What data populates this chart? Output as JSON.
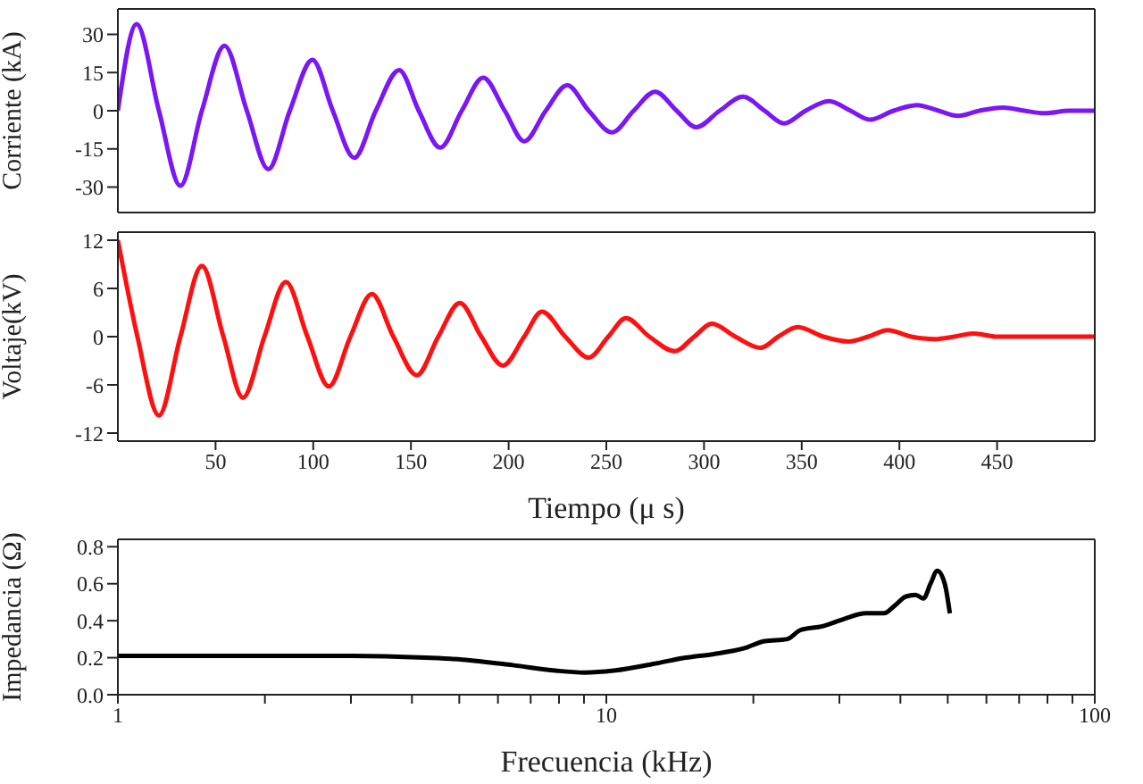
{
  "chart_data": [
    {
      "type": "line",
      "ylabel": "Corriente (kA)",
      "x": [
        0,
        9.6,
        21,
        32,
        43,
        54.6,
        66,
        77,
        88,
        99.6,
        110,
        121,
        132,
        144,
        154,
        165,
        176,
        187,
        198,
        208,
        219,
        230,
        241,
        253,
        264,
        275,
        286,
        296,
        308,
        320,
        331,
        341,
        352,
        364,
        375,
        385,
        397,
        409,
        420,
        430,
        441,
        453,
        464,
        474,
        487,
        500
      ],
      "series": [
        {
          "color": "#7b16f5",
          "values": [
            0,
            34,
            0,
            -29.5,
            0,
            25.5,
            0,
            -23,
            0,
            20,
            0,
            -18.5,
            0,
            16,
            0,
            -14.5,
            0,
            13,
            0,
            -12,
            0,
            10,
            0,
            -8.5,
            0,
            7.5,
            0,
            -6.5,
            0,
            5.5,
            0,
            -5,
            0,
            3.8,
            0,
            -3.5,
            0,
            2.2,
            0,
            -2,
            0,
            1.2,
            0,
            -1,
            0,
            0
          ]
        }
      ],
      "xlim": [
        0,
        500
      ],
      "xticks": [
        50,
        100,
        150,
        200,
        250,
        300,
        350,
        400,
        450
      ],
      "ylim": [
        -40,
        40
      ],
      "yticks": [
        -30,
        -15,
        0,
        15,
        30
      ],
      "tick_labels": "y"
    },
    {
      "type": "line",
      "ylabel": "Voltaje(kV)",
      "xlabel": "Tiempo (μ s)",
      "x": [
        0,
        10,
        21,
        32,
        43,
        54,
        64,
        75,
        86,
        97,
        108,
        119,
        130,
        141,
        153,
        164,
        175,
        186,
        197,
        208,
        217,
        229,
        241,
        251,
        260,
        272,
        285,
        295,
        304,
        316,
        329,
        338,
        348,
        361,
        374,
        384,
        394,
        406,
        418,
        428,
        438,
        450,
        470,
        500
      ],
      "series": [
        {
          "color": "#ff1010",
          "values": [
            12,
            0,
            -9.8,
            0,
            8.8,
            0,
            -7.6,
            0,
            6.8,
            0,
            -6.2,
            0,
            5.3,
            0,
            -4.8,
            0,
            4.2,
            0,
            -3.6,
            0,
            3.1,
            0,
            -2.6,
            0,
            2.3,
            0,
            -1.8,
            0,
            1.6,
            0,
            -1.4,
            0,
            1.2,
            0,
            -0.6,
            0,
            0.8,
            0,
            -0.3,
            0,
            0.4,
            0,
            0,
            0
          ]
        }
      ],
      "xlim": [
        0,
        500
      ],
      "xticks": [
        50,
        100,
        150,
        200,
        250,
        300,
        350,
        400,
        450
      ],
      "ylim": [
        -13,
        13
      ],
      "yticks": [
        -12,
        -6,
        0,
        6,
        12
      ]
    },
    {
      "type": "line",
      "ylabel": "Impedancia (Ω)",
      "xlabel": "Frecuencia (kHz)",
      "log": "x",
      "x": [
        1,
        2,
        3,
        4.27,
        5.07,
        6.43,
        7.88,
        9.03,
        10.35,
        12.7,
        14.5,
        16.6,
        19.1,
        21.1,
        23.4,
        25,
        27.7,
        30.7,
        34,
        37,
        38.9,
        41,
        43,
        44.6,
        46.1,
        47.6,
        49.3,
        50.5
      ],
      "series": [
        {
          "color": "#000000",
          "values": [
            0.21,
            0.21,
            0.21,
            0.2,
            0.19,
            0.16,
            0.13,
            0.12,
            0.13,
            0.17,
            0.2,
            0.22,
            0.25,
            0.29,
            0.3,
            0.35,
            0.37,
            0.41,
            0.44,
            0.44,
            0.48,
            0.53,
            0.54,
            0.52,
            0.6,
            0.67,
            0.6,
            0.44
          ]
        }
      ],
      "xlim": [
        1,
        100
      ],
      "xticks": [
        1,
        {
          "value": 2,
          "label": null
        },
        {
          "value": 3,
          "label": null
        },
        {
          "value": 4,
          "label": null
        },
        {
          "value": 5,
          "label": null
        },
        {
          "value": 6,
          "label": null
        },
        {
          "value": 7,
          "label": null
        },
        {
          "value": 8,
          "label": null
        },
        {
          "value": 9,
          "label": null
        },
        10,
        {
          "value": 20,
          "label": null
        },
        {
          "value": 30,
          "label": null
        },
        {
          "value": 40,
          "label": null
        },
        {
          "value": 50,
          "label": null
        },
        {
          "value": 60,
          "label": null
        },
        {
          "value": 70,
          "label": null
        },
        {
          "value": 80,
          "label": null
        },
        {
          "value": 90,
          "label": null
        },
        100
      ],
      "ylim": [
        0,
        0.84
      ],
      "yticks": [
        {
          "value": 0,
          "label": "0.0"
        },
        0.2,
        0.4,
        0.6,
        0.8
      ]
    }
  ]
}
